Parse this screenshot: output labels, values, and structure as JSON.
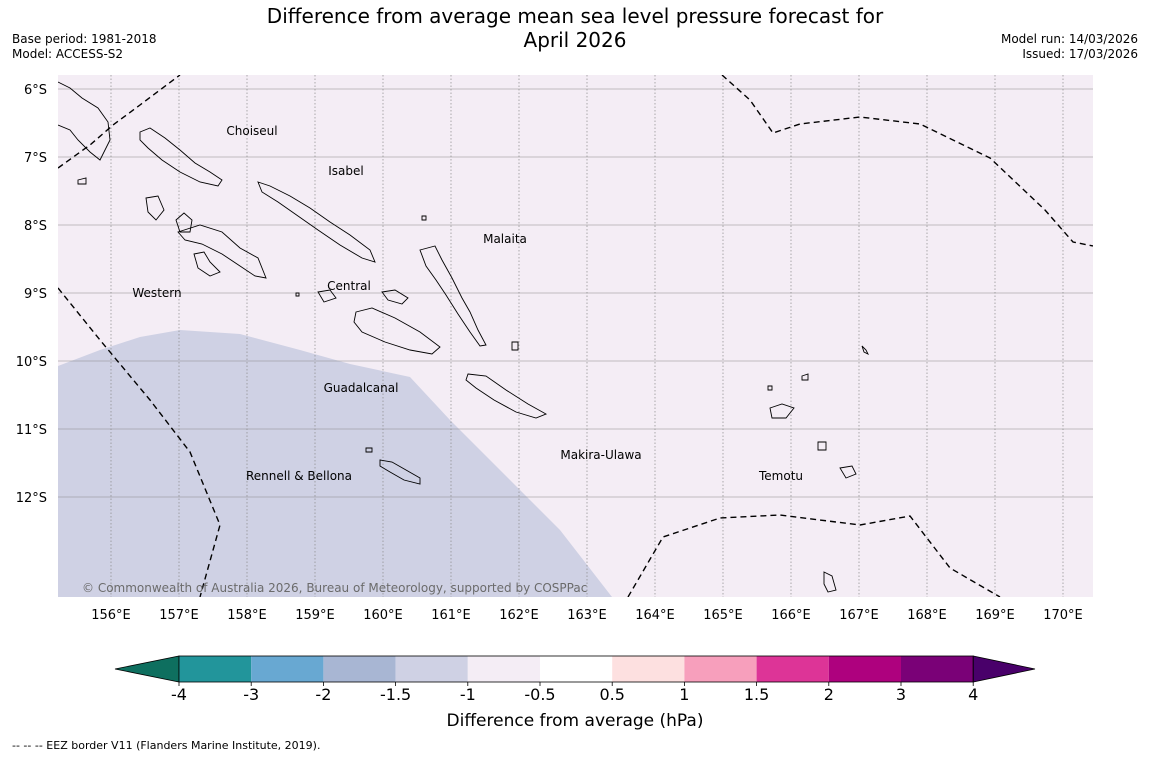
{
  "header": {
    "title_line1": "Difference from average mean sea level pressure forecast for",
    "title_line2": "April 2026",
    "base_period": "Base period: 1981-2018",
    "model": "Model: ACCESS-S2",
    "model_run": "Model run: 14/03/2026",
    "issued": "Issued: 17/03/2026"
  },
  "map": {
    "lat_labels": [
      "6°S",
      "7°S",
      "8°S",
      "9°S",
      "10°S",
      "11°S",
      "12°S"
    ],
    "lon_labels": [
      "156°E",
      "157°E",
      "158°E",
      "159°E",
      "160°E",
      "161°E",
      "162°E",
      "163°E",
      "164°E",
      "165°E",
      "166°E",
      "167°E",
      "168°E",
      "169°E",
      "170°E"
    ],
    "places": [
      "Choiseul",
      "Isabel",
      "Malaita",
      "Western",
      "Central",
      "Guadalcanal",
      "Makira-Ulawa",
      "Rennell & Bellona",
      "Temotu"
    ],
    "copyright": "© Commonwealth of Australia 2026, Bureau of Meteorology, supported by COSPPac",
    "fill_colors": {
      "background": "#f4edf5",
      "anomaly_-1.5_-1": "#cfd1e4"
    }
  },
  "colorbar": {
    "ticks": [
      "-4",
      "-3",
      "-2",
      "-1.5",
      "-1",
      "-0.5",
      "0.5",
      "1",
      "1.5",
      "2",
      "3",
      "4"
    ],
    "colors": [
      "#0e6f5f",
      "#22959b",
      "#68a8d2",
      "#a8b6d3",
      "#cfd1e4",
      "#f4edf5",
      "#ffffff",
      "#fde0e0",
      "#f79fbc",
      "#dd3497",
      "#ae017e",
      "#7a0177",
      "#49006a"
    ],
    "label": "Difference from average (hPa)"
  },
  "legend": {
    "eez_text": "--  --  -- EEZ border V11 (Flanders Marine Institute, 2019)."
  }
}
